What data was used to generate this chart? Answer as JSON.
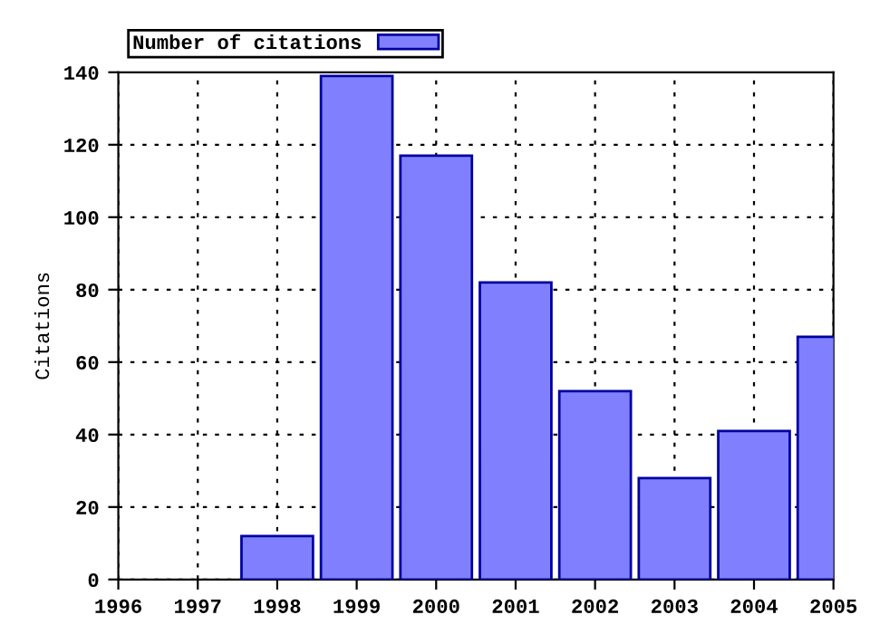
{
  "chart_data": {
    "type": "bar",
    "ylabel": "Citations",
    "x": [
      1998,
      1999,
      2000,
      2001,
      2002,
      2003,
      2004,
      2005
    ],
    "series": [
      {
        "name": "Number of citations",
        "color": "#8080ff",
        "values": [
          12,
          139,
          117,
          82,
          52,
          28,
          41,
          67
        ]
      }
    ],
    "xlim": [
      1996,
      2005
    ],
    "xticks": [
      1996,
      1997,
      1998,
      1999,
      2000,
      2001,
      2002,
      2003,
      2004,
      2005
    ],
    "ylim": [
      0,
      140
    ],
    "yticks": [
      0,
      20,
      40,
      60,
      80,
      100,
      120,
      140
    ],
    "grid": true,
    "legend": "top"
  }
}
